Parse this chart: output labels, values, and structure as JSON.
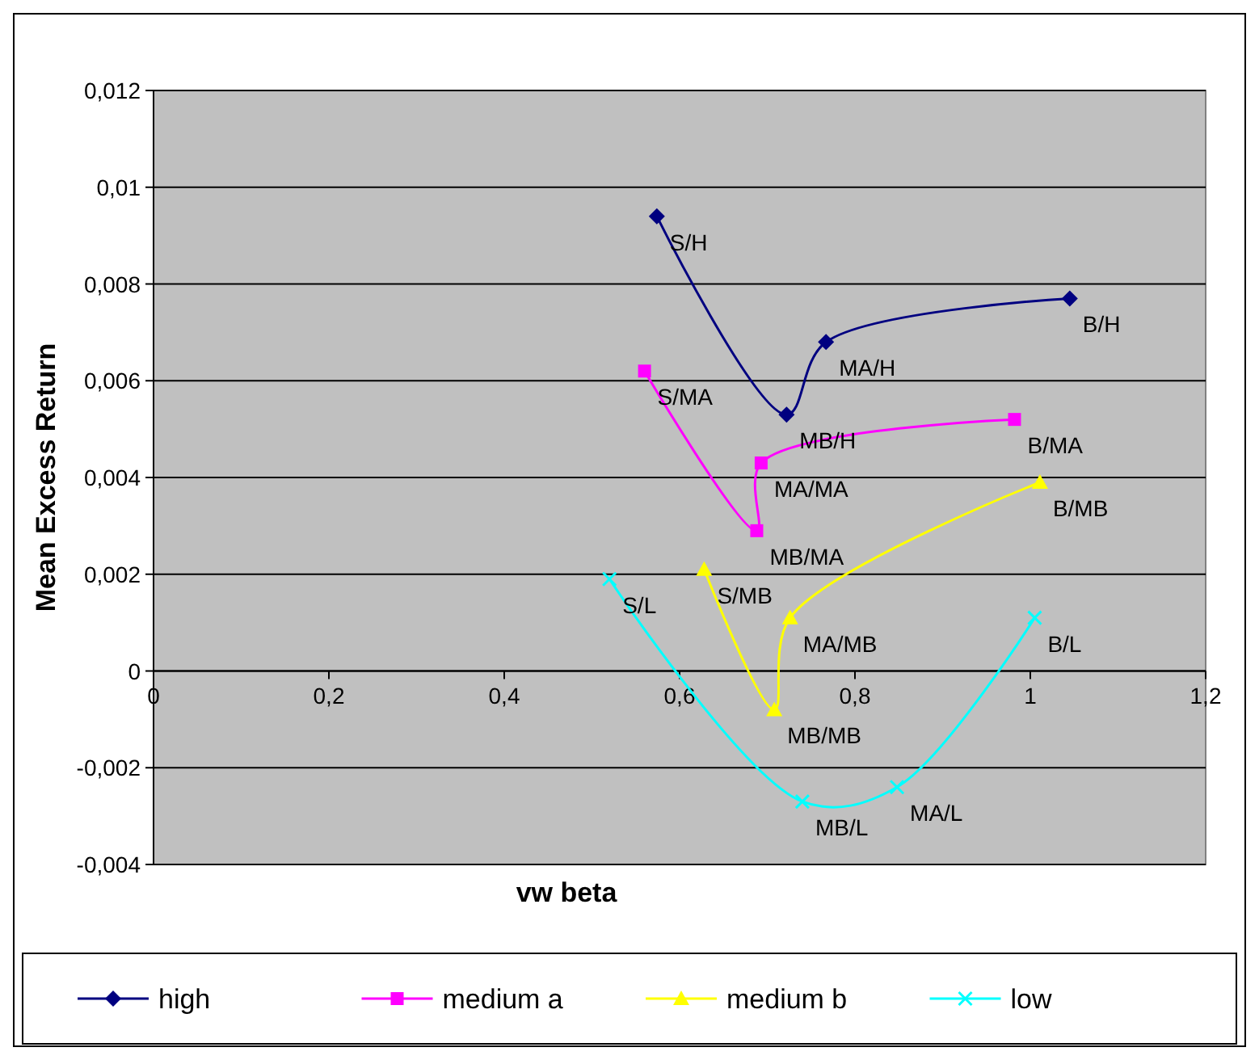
{
  "chart_data": {
    "type": "line",
    "xlabel": "vw beta",
    "ylabel": "Mean Excess Return",
    "xlim": [
      0,
      1.2
    ],
    "ylim": [
      -0.004,
      0.012
    ],
    "xticks": [
      0,
      {
        "value": 0.2,
        "label": "0,2"
      },
      {
        "value": 0.4,
        "label": "0,4"
      },
      {
        "value": 0.6,
        "label": "0,6"
      },
      {
        "value": 0.8,
        "label": "0,8"
      },
      1,
      {
        "value": 1.2,
        "label": "1,2"
      }
    ],
    "yticks": [
      {
        "value": -0.004,
        "label": "-0,004"
      },
      {
        "value": -0.002,
        "label": "-0,002"
      },
      0,
      {
        "value": 0.002,
        "label": "0,002"
      },
      {
        "value": 0.004,
        "label": "0,004"
      },
      {
        "value": 0.006,
        "label": "0,006"
      },
      {
        "value": 0.008,
        "label": "0,008"
      },
      {
        "value": 0.01,
        "label": "0,01"
      },
      {
        "value": 0.012,
        "label": "0,012"
      }
    ],
    "grid": "y",
    "legend": "bottom",
    "line_style": "solid",
    "series": [
      {
        "name": "high",
        "color": "#000080",
        "marker": "diamond",
        "x": [
          0.574,
          0.722,
          0.767,
          1.045
        ],
        "values": [
          0.0094,
          0.0053,
          0.0068,
          0.0077
        ]
      },
      {
        "name": "medium a",
        "color": "#ff00ff",
        "marker": "square",
        "x": [
          0.56,
          0.688,
          0.693,
          0.982
        ],
        "values": [
          0.0062,
          0.0029,
          0.0043,
          0.0052
        ]
      },
      {
        "name": "medium b",
        "color": "#ffff00",
        "marker": "triangle",
        "x": [
          0.628,
          0.708,
          0.726,
          1.011
        ],
        "values": [
          0.0021,
          -0.0008,
          0.0011,
          0.0039
        ]
      },
      {
        "name": "low",
        "color": "#00ffff",
        "marker": "cross",
        "x": [
          0.52,
          0.74,
          0.848,
          1.005
        ],
        "values": [
          0.0019,
          -0.0027,
          -0.0024,
          0.0011
        ]
      }
    ],
    "annotations": [
      {
        "text": "S/H",
        "x": 0.574,
        "y": 0.0094
      },
      {
        "text": "MB/H",
        "x": 0.722,
        "y": 0.0053
      },
      {
        "text": "MA/H",
        "x": 0.767,
        "y": 0.0068
      },
      {
        "text": "B/H",
        "x": 1.045,
        "y": 0.0077
      },
      {
        "text": "S/MA",
        "x": 0.56,
        "y": 0.0062
      },
      {
        "text": "MB/MA",
        "x": 0.688,
        "y": 0.0029
      },
      {
        "text": "MA/MA",
        "x": 0.693,
        "y": 0.0043
      },
      {
        "text": "B/MA",
        "x": 0.982,
        "y": 0.0052
      },
      {
        "text": "S/MB",
        "x": 0.628,
        "y": 0.0021
      },
      {
        "text": "MB/MB",
        "x": 0.708,
        "y": -0.0008
      },
      {
        "text": "MA/MB",
        "x": 0.726,
        "y": 0.0011
      },
      {
        "text": "B/MB",
        "x": 1.011,
        "y": 0.0039
      },
      {
        "text": "S/L",
        "x": 0.52,
        "y": 0.0019
      },
      {
        "text": "MB/L",
        "x": 0.74,
        "y": -0.0027
      },
      {
        "text": "MA/L",
        "x": 0.848,
        "y": -0.0024
      },
      {
        "text": "B/L",
        "x": 1.005,
        "y": 0.0011
      }
    ]
  }
}
